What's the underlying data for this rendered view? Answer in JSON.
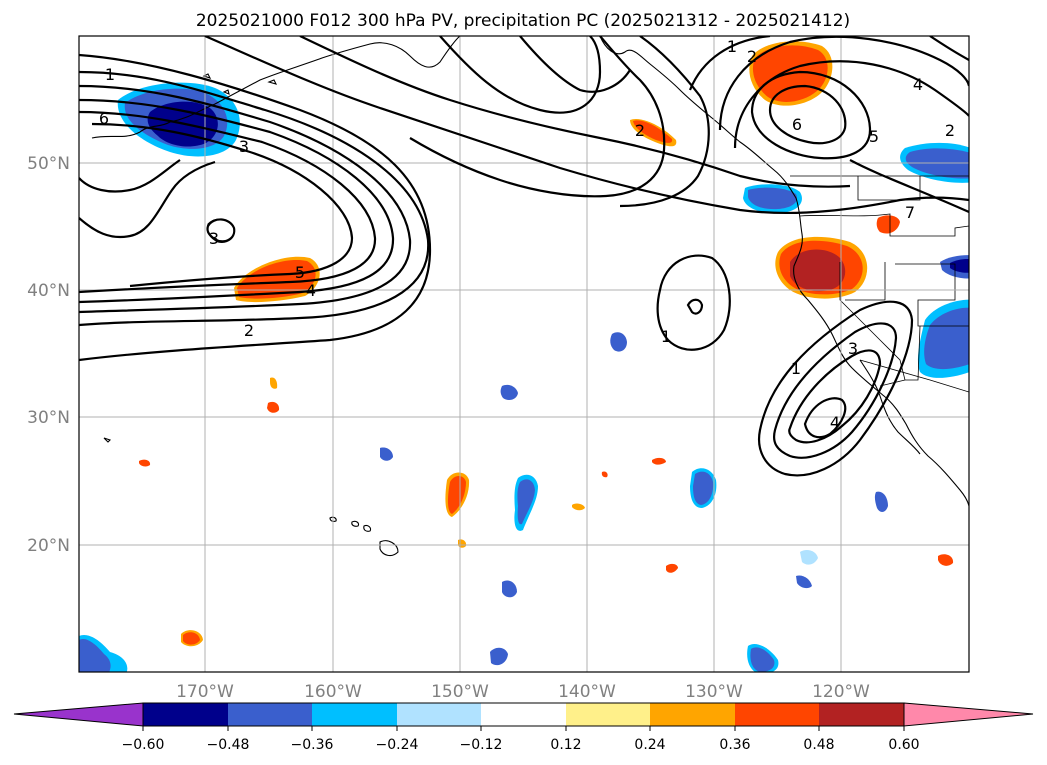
{
  "title": "2025021000 F012 300 hPa PV, precipitation PC (2025021312 - 2025021412)",
  "latitudes": [
    "50°N",
    "40°N",
    "30°N",
    "20°N"
  ],
  "longitudes": [
    "170°W",
    "160°W",
    "150°W",
    "140°W",
    "130°W",
    "120°W"
  ],
  "colorbar": {
    "ticks": [
      "−0.60",
      "−0.48",
      "−0.36",
      "−0.24",
      "−0.12",
      "0.12",
      "0.24",
      "0.36",
      "0.48",
      "0.60"
    ],
    "colors": [
      "#9933cc",
      "#00008b",
      "#3a5fcd",
      "#00bfff",
      "#b0e2ff",
      "#ffffff",
      "#fff08a",
      "#ffa500",
      "#ff4500",
      "#b22222",
      "#ff88aa"
    ]
  },
  "contour_labels": [
    "1",
    "6",
    "3",
    "5",
    "4",
    "2",
    "3",
    "2",
    "1",
    "2",
    "6",
    "4",
    "5",
    "2",
    "7",
    "1",
    "1",
    "3",
    "4"
  ]
}
